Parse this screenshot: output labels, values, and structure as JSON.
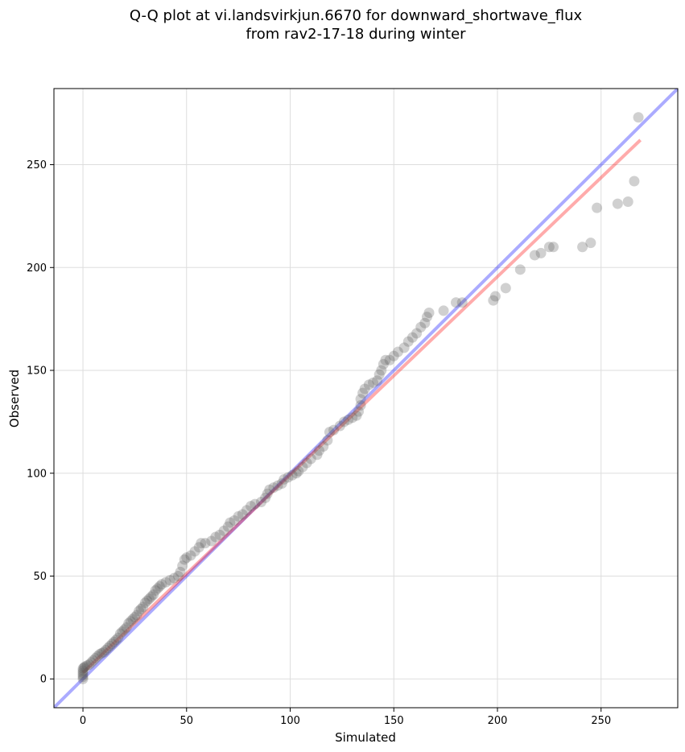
{
  "chart_data": {
    "type": "scatter",
    "title_line1": "Q-Q plot at vi.landsvirkjun.6670 for downward_shortwave_flux",
    "title_line2": "from rav2-17-18 during winter",
    "xlabel": "Simulated",
    "ylabel": "Observed",
    "xlim": [
      -14,
      287
    ],
    "ylim": [
      -14,
      287
    ],
    "xticks": [
      0,
      50,
      100,
      150,
      200,
      250
    ],
    "yticks": [
      0,
      50,
      100,
      150,
      200,
      250
    ],
    "grid": true,
    "colors": {
      "points": "#555555",
      "one_to_one_line": "#0000ff",
      "fit_line": "#ff0000"
    },
    "one_to_one_line": [
      [
        -14,
        -14
      ],
      [
        287,
        287
      ]
    ],
    "fit_line": [
      [
        0,
        3
      ],
      [
        269,
        262
      ]
    ],
    "points": [
      [
        0,
        0
      ],
      [
        0,
        1
      ],
      [
        0,
        2
      ],
      [
        0,
        3
      ],
      [
        0,
        4
      ],
      [
        0,
        5
      ],
      [
        0.5,
        5.5
      ],
      [
        1,
        6
      ],
      [
        2,
        6.5
      ],
      [
        3,
        7
      ],
      [
        4,
        8
      ],
      [
        5,
        9
      ],
      [
        6,
        10
      ],
      [
        7,
        11
      ],
      [
        8,
        12
      ],
      [
        9,
        12.5
      ],
      [
        10,
        13
      ],
      [
        11,
        14
      ],
      [
        12,
        15
      ],
      [
        13,
        16
      ],
      [
        14,
        17
      ],
      [
        15,
        18
      ],
      [
        16,
        19
      ],
      [
        17,
        20
      ],
      [
        18,
        22
      ],
      [
        19,
        23
      ],
      [
        20,
        24
      ],
      [
        21,
        25
      ],
      [
        22,
        27
      ],
      [
        23,
        28
      ],
      [
        24,
        29
      ],
      [
        25,
        30
      ],
      [
        26,
        31
      ],
      [
        27,
        33
      ],
      [
        28,
        34
      ],
      [
        29,
        35
      ],
      [
        30,
        37
      ],
      [
        31,
        38
      ],
      [
        32,
        39
      ],
      [
        33,
        40
      ],
      [
        34,
        41
      ],
      [
        35,
        43
      ],
      [
        36,
        44
      ],
      [
        37,
        45
      ],
      [
        38,
        46
      ],
      [
        40,
        47
      ],
      [
        42,
        48
      ],
      [
        44,
        49
      ],
      [
        46,
        50
      ],
      [
        47,
        52
      ],
      [
        48,
        55
      ],
      [
        49,
        58
      ],
      [
        50,
        59
      ],
      [
        52,
        60
      ],
      [
        54,
        62
      ],
      [
        56,
        64
      ],
      [
        57,
        66
      ],
      [
        59,
        66
      ],
      [
        62,
        67
      ],
      [
        64,
        69
      ],
      [
        66,
        70
      ],
      [
        68,
        72
      ],
      [
        70,
        74
      ],
      [
        71,
        76
      ],
      [
        73,
        77
      ],
      [
        75,
        79
      ],
      [
        77,
        80
      ],
      [
        79,
        82
      ],
      [
        81,
        84
      ],
      [
        83,
        85
      ],
      [
        86,
        86
      ],
      [
        88,
        88
      ],
      [
        89,
        90
      ],
      [
        90,
        92
      ],
      [
        92,
        93
      ],
      [
        94,
        94
      ],
      [
        96,
        95
      ],
      [
        97,
        97
      ],
      [
        99,
        98
      ],
      [
        101,
        99
      ],
      [
        103,
        100
      ],
      [
        104,
        101
      ],
      [
        106,
        103
      ],
      [
        108,
        105
      ],
      [
        110,
        107
      ],
      [
        113,
        109
      ],
      [
        114,
        111
      ],
      [
        116,
        113
      ],
      [
        118,
        116
      ],
      [
        119,
        120
      ],
      [
        121,
        121
      ],
      [
        124,
        123
      ],
      [
        126,
        125
      ],
      [
        128,
        126
      ],
      [
        130,
        127
      ],
      [
        132,
        128
      ],
      [
        133,
        130
      ],
      [
        134,
        133
      ],
      [
        134,
        136
      ],
      [
        135,
        139
      ],
      [
        136,
        141
      ],
      [
        138,
        143
      ],
      [
        140,
        144
      ],
      [
        142,
        145
      ],
      [
        143,
        148
      ],
      [
        144,
        150
      ],
      [
        145,
        153
      ],
      [
        146,
        155
      ],
      [
        148,
        155
      ],
      [
        150,
        157
      ],
      [
        152,
        159
      ],
      [
        155,
        161
      ],
      [
        157,
        164
      ],
      [
        159,
        166
      ],
      [
        161,
        168
      ],
      [
        163,
        171
      ],
      [
        165,
        173
      ],
      [
        166,
        176
      ],
      [
        167,
        178
      ],
      [
        174,
        179
      ],
      [
        180,
        183
      ],
      [
        183,
        183
      ],
      [
        198,
        184
      ],
      [
        199,
        186
      ],
      [
        204,
        190
      ],
      [
        211,
        199
      ],
      [
        218,
        206
      ],
      [
        221,
        207
      ],
      [
        225,
        210
      ],
      [
        227,
        210
      ],
      [
        241,
        210
      ],
      [
        245,
        212
      ],
      [
        248,
        229
      ],
      [
        258,
        231
      ],
      [
        263,
        232
      ],
      [
        266,
        242
      ],
      [
        268,
        273
      ]
    ]
  }
}
